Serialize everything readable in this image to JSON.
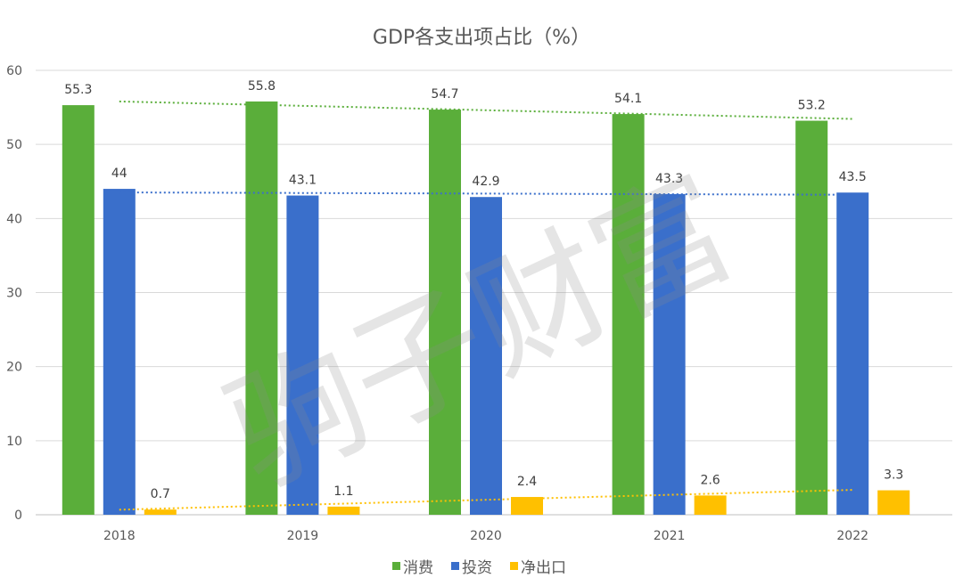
{
  "chart_data": {
    "type": "bar",
    "title": "GDP各支出项占比（%）",
    "xlabel": "",
    "ylabel": "",
    "categories": [
      "2018",
      "2019",
      "2020",
      "2021",
      "2022"
    ],
    "ylim": [
      0,
      60
    ],
    "yticks": [
      0,
      10,
      20,
      30,
      40,
      50,
      60
    ],
    "grid": true,
    "legend_position": "bottom",
    "trendlines": "linear, dotted, per series",
    "series": [
      {
        "name": "消费",
        "color": "#5AAE3A",
        "values": [
          55.3,
          55.8,
          54.7,
          54.1,
          53.2
        ]
      },
      {
        "name": "投资",
        "color": "#3A6FCB",
        "values": [
          44,
          43.1,
          42.9,
          43.3,
          43.5
        ]
      },
      {
        "name": "净出口",
        "color": "#FFC000",
        "values": [
          0.7,
          1.1,
          2.4,
          2.6,
          3.3
        ]
      }
    ]
  },
  "watermark": "驹子财富"
}
